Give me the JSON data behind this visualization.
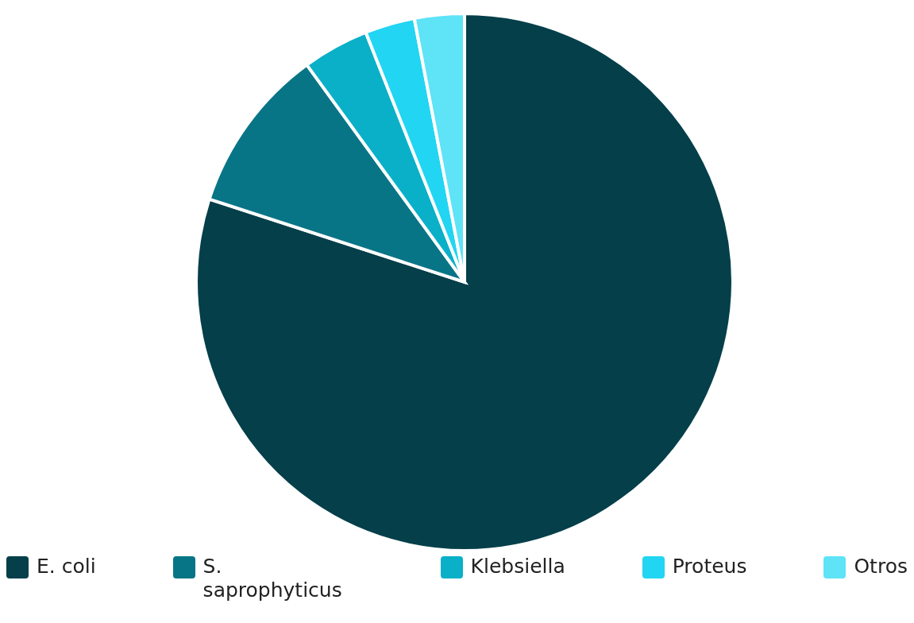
{
  "chart_data": {
    "type": "pie",
    "categories": [
      "E. coli",
      "S. saprophyticus",
      "Klebsiella",
      "Proteus",
      "Otros"
    ],
    "values": [
      80,
      10,
      4,
      3,
      3
    ],
    "colors": [
      "#043f4a",
      "#087586",
      "#0ab0c8",
      "#22d5f2",
      "#5ee3f7"
    ],
    "legend": "bottom"
  }
}
